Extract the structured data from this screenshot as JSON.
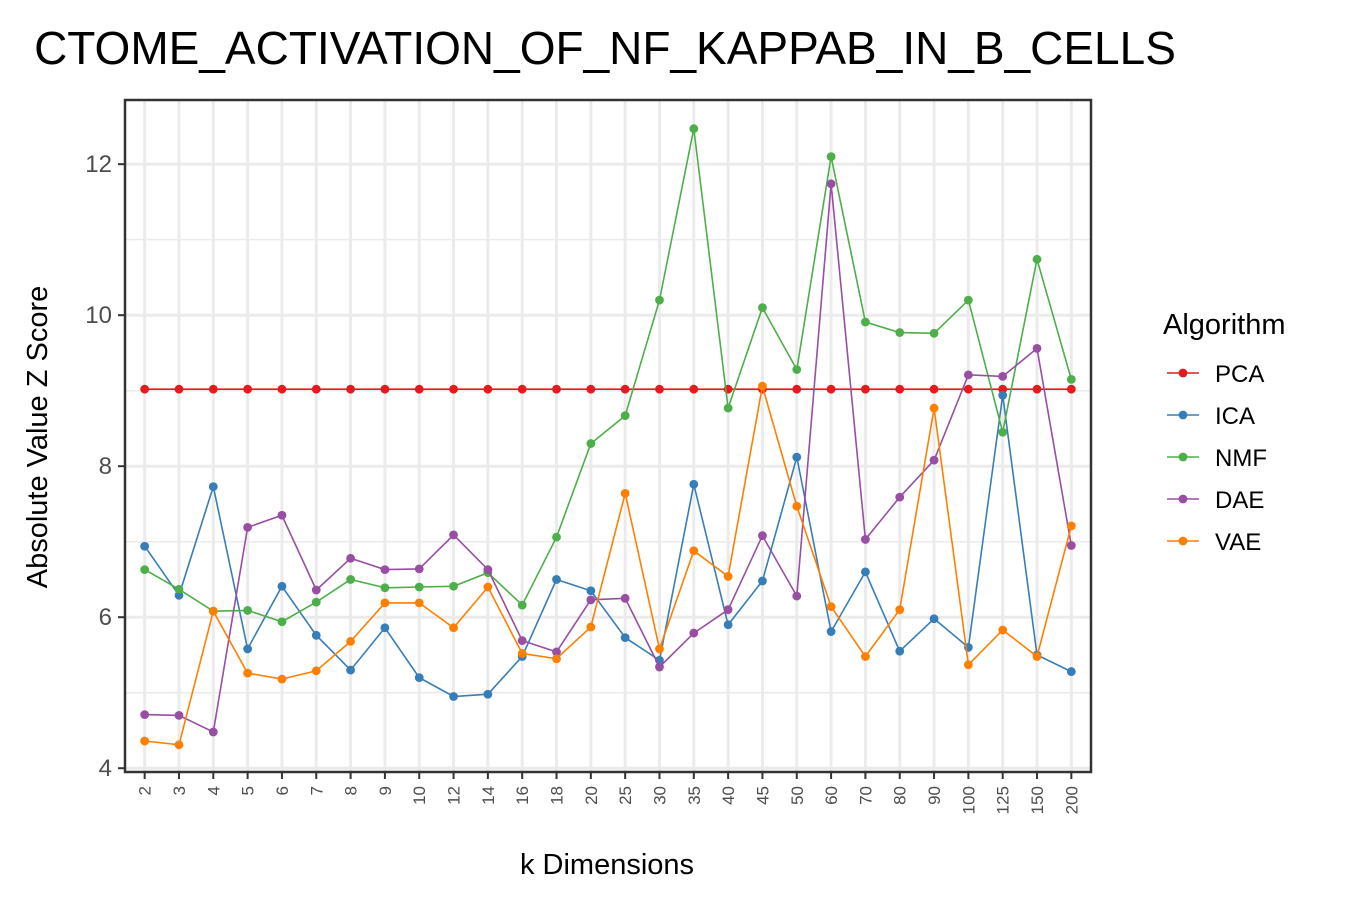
{
  "chart_data": {
    "type": "line",
    "title": "CTOME_ACTIVATION_OF_NF_KAPPAB_IN_B_CELLS",
    "xlabel": "k Dimensions",
    "ylabel": "Absolute Value Z Score",
    "categories": [
      "2",
      "3",
      "4",
      "5",
      "6",
      "7",
      "8",
      "9",
      "10",
      "12",
      "14",
      "16",
      "18",
      "20",
      "25",
      "30",
      "35",
      "40",
      "45",
      "50",
      "60",
      "70",
      "80",
      "90",
      "100",
      "125",
      "150",
      "200"
    ],
    "ylim": [
      3.95,
      12.85
    ],
    "yticks": [
      4,
      6,
      8,
      10,
      12
    ],
    "grid": true,
    "legend": {
      "title": "Algorithm",
      "position": "right"
    },
    "series": [
      {
        "name": "PCA",
        "color": "#e41a1c",
        "values": [
          9.02,
          9.02,
          9.02,
          9.02,
          9.02,
          9.02,
          9.02,
          9.02,
          9.02,
          9.02,
          9.02,
          9.02,
          9.02,
          9.02,
          9.02,
          9.02,
          9.02,
          9.02,
          9.02,
          9.02,
          9.02,
          9.02,
          9.02,
          9.02,
          9.02,
          9.02,
          9.02,
          9.02
        ]
      },
      {
        "name": "ICA",
        "color": "#377eb8",
        "values": [
          6.94,
          6.29,
          7.73,
          5.58,
          6.41,
          5.76,
          5.3,
          5.86,
          5.2,
          4.95,
          4.98,
          5.48,
          6.5,
          6.35,
          5.73,
          5.43,
          7.76,
          5.9,
          6.48,
          8.12,
          5.81,
          6.6,
          5.55,
          5.98,
          5.6,
          8.94,
          5.5,
          5.28
        ]
      },
      {
        "name": "NMF",
        "color": "#4daf4a",
        "values": [
          6.63,
          6.37,
          6.08,
          6.09,
          5.94,
          6.2,
          6.5,
          6.39,
          6.4,
          6.41,
          6.59,
          6.16,
          7.06,
          8.3,
          8.67,
          10.2,
          12.47,
          8.77,
          10.1,
          9.28,
          12.1,
          9.91,
          9.77,
          9.76,
          10.2,
          8.45,
          10.74,
          9.15
        ]
      },
      {
        "name": "DAE",
        "color": "#984ea3",
        "values": [
          4.71,
          4.7,
          4.48,
          7.19,
          7.35,
          6.36,
          6.78,
          6.63,
          6.64,
          7.09,
          6.63,
          5.69,
          5.54,
          6.23,
          6.25,
          5.34,
          5.79,
          6.1,
          7.08,
          6.28,
          11.74,
          7.03,
          7.59,
          8.08,
          9.21,
          9.19,
          9.56,
          6.95
        ]
      },
      {
        "name": "VAE",
        "color": "#ff7f00",
        "values": [
          4.36,
          4.31,
          6.08,
          5.26,
          5.18,
          5.29,
          5.68,
          6.19,
          6.19,
          5.86,
          6.4,
          5.52,
          5.45,
          5.87,
          7.64,
          5.58,
          6.88,
          6.54,
          9.06,
          7.47,
          6.14,
          5.48,
          6.1,
          8.77,
          5.37,
          5.83,
          5.48,
          7.21
        ]
      }
    ]
  }
}
